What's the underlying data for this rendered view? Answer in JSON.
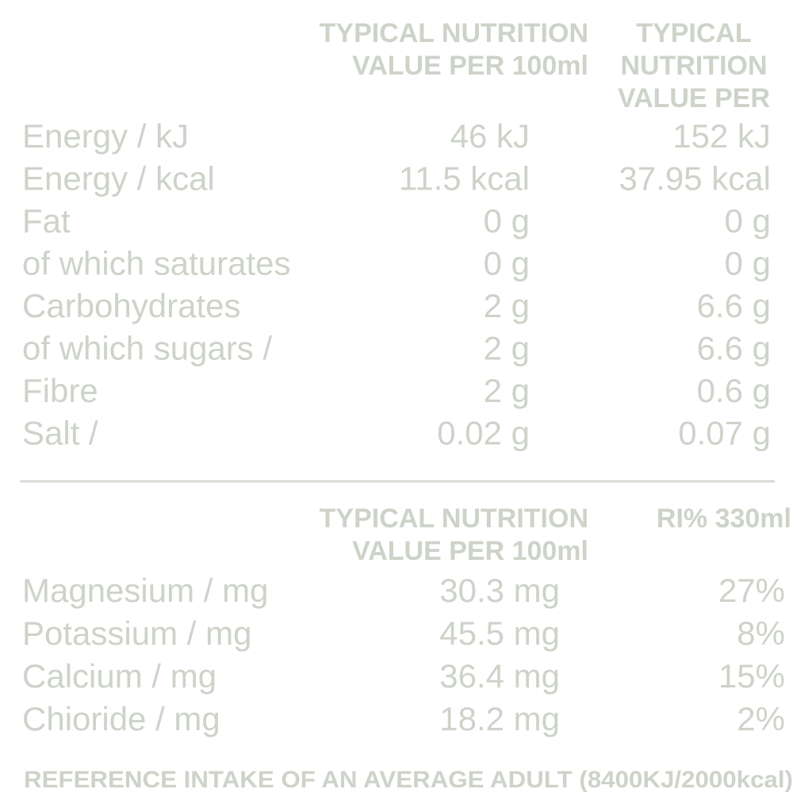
{
  "table1": {
    "headers": [
      [
        "TYPICAL NUTRITION",
        "VALUE PER 100ml"
      ],
      [
        "TYPICAL",
        "NUTRITION",
        "VALUE PER"
      ]
    ],
    "rows": [
      [
        "Energy / kJ",
        "46 kJ",
        "152 kJ"
      ],
      [
        "Energy / kcal",
        "11.5 kcal",
        "37.95 kcal"
      ],
      [
        "Fat",
        "0 g",
        "0 g"
      ],
      [
        "of which saturates",
        "0 g",
        "0 g"
      ],
      [
        "Carbohydrates",
        "2 g",
        "6.6 g"
      ],
      [
        "of which sugars /",
        "2 g",
        "6.6 g"
      ],
      [
        "Fibre",
        "2 g",
        "0.6 g"
      ],
      [
        "Salt /",
        "0.02 g",
        "0.07 g"
      ]
    ]
  },
  "table2": {
    "headers": [
      [
        "TYPICAL NUTRITION",
        "VALUE PER 100ml"
      ],
      [
        "RI% 330ml"
      ]
    ],
    "rows": [
      [
        "Magnesium / mg",
        "30.3 mg",
        "27%"
      ],
      [
        "Potassium / mg",
        "45.5 mg",
        "8%"
      ],
      [
        "Calcium / mg",
        "36.4 mg",
        "15%"
      ],
      [
        "Chioride / mg",
        "18.2 mg",
        "2%"
      ]
    ]
  },
  "footer": "REFERENCE INTAKE OF AN AVERAGE ADULT (8400KJ/2000kcal)"
}
